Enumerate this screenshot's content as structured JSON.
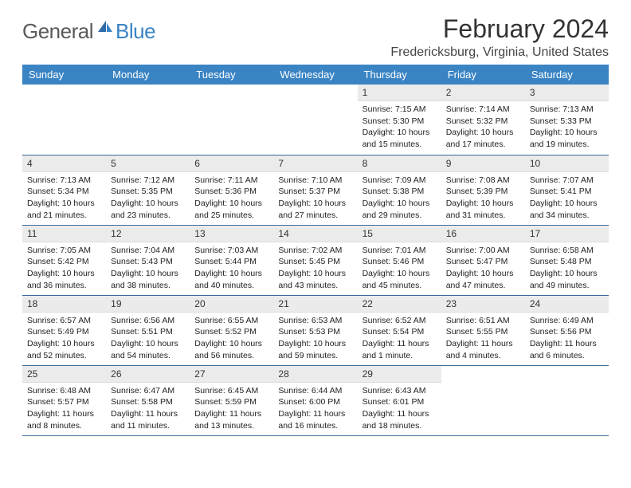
{
  "logo": {
    "general": "General",
    "blue": "Blue"
  },
  "title": "February 2024",
  "location": "Fredericksburg, Virginia, United States",
  "colors": {
    "header_bg": "#3a84c4",
    "header_text": "#ffffff",
    "daynum_bg": "#ebebeb",
    "row_border": "#3a6a9a",
    "logo_blue": "#3a84c4",
    "logo_gray": "#5a5a5a"
  },
  "weekdays": [
    "Sunday",
    "Monday",
    "Tuesday",
    "Wednesday",
    "Thursday",
    "Friday",
    "Saturday"
  ],
  "weeks": [
    [
      null,
      null,
      null,
      null,
      {
        "n": "1",
        "sr": "Sunrise: 7:15 AM",
        "ss": "Sunset: 5:30 PM",
        "dl1": "Daylight: 10 hours",
        "dl2": "and 15 minutes."
      },
      {
        "n": "2",
        "sr": "Sunrise: 7:14 AM",
        "ss": "Sunset: 5:32 PM",
        "dl1": "Daylight: 10 hours",
        "dl2": "and 17 minutes."
      },
      {
        "n": "3",
        "sr": "Sunrise: 7:13 AM",
        "ss": "Sunset: 5:33 PM",
        "dl1": "Daylight: 10 hours",
        "dl2": "and 19 minutes."
      }
    ],
    [
      {
        "n": "4",
        "sr": "Sunrise: 7:13 AM",
        "ss": "Sunset: 5:34 PM",
        "dl1": "Daylight: 10 hours",
        "dl2": "and 21 minutes."
      },
      {
        "n": "5",
        "sr": "Sunrise: 7:12 AM",
        "ss": "Sunset: 5:35 PM",
        "dl1": "Daylight: 10 hours",
        "dl2": "and 23 minutes."
      },
      {
        "n": "6",
        "sr": "Sunrise: 7:11 AM",
        "ss": "Sunset: 5:36 PM",
        "dl1": "Daylight: 10 hours",
        "dl2": "and 25 minutes."
      },
      {
        "n": "7",
        "sr": "Sunrise: 7:10 AM",
        "ss": "Sunset: 5:37 PM",
        "dl1": "Daylight: 10 hours",
        "dl2": "and 27 minutes."
      },
      {
        "n": "8",
        "sr": "Sunrise: 7:09 AM",
        "ss": "Sunset: 5:38 PM",
        "dl1": "Daylight: 10 hours",
        "dl2": "and 29 minutes."
      },
      {
        "n": "9",
        "sr": "Sunrise: 7:08 AM",
        "ss": "Sunset: 5:39 PM",
        "dl1": "Daylight: 10 hours",
        "dl2": "and 31 minutes."
      },
      {
        "n": "10",
        "sr": "Sunrise: 7:07 AM",
        "ss": "Sunset: 5:41 PM",
        "dl1": "Daylight: 10 hours",
        "dl2": "and 34 minutes."
      }
    ],
    [
      {
        "n": "11",
        "sr": "Sunrise: 7:05 AM",
        "ss": "Sunset: 5:42 PM",
        "dl1": "Daylight: 10 hours",
        "dl2": "and 36 minutes."
      },
      {
        "n": "12",
        "sr": "Sunrise: 7:04 AM",
        "ss": "Sunset: 5:43 PM",
        "dl1": "Daylight: 10 hours",
        "dl2": "and 38 minutes."
      },
      {
        "n": "13",
        "sr": "Sunrise: 7:03 AM",
        "ss": "Sunset: 5:44 PM",
        "dl1": "Daylight: 10 hours",
        "dl2": "and 40 minutes."
      },
      {
        "n": "14",
        "sr": "Sunrise: 7:02 AM",
        "ss": "Sunset: 5:45 PM",
        "dl1": "Daylight: 10 hours",
        "dl2": "and 43 minutes."
      },
      {
        "n": "15",
        "sr": "Sunrise: 7:01 AM",
        "ss": "Sunset: 5:46 PM",
        "dl1": "Daylight: 10 hours",
        "dl2": "and 45 minutes."
      },
      {
        "n": "16",
        "sr": "Sunrise: 7:00 AM",
        "ss": "Sunset: 5:47 PM",
        "dl1": "Daylight: 10 hours",
        "dl2": "and 47 minutes."
      },
      {
        "n": "17",
        "sr": "Sunrise: 6:58 AM",
        "ss": "Sunset: 5:48 PM",
        "dl1": "Daylight: 10 hours",
        "dl2": "and 49 minutes."
      }
    ],
    [
      {
        "n": "18",
        "sr": "Sunrise: 6:57 AM",
        "ss": "Sunset: 5:49 PM",
        "dl1": "Daylight: 10 hours",
        "dl2": "and 52 minutes."
      },
      {
        "n": "19",
        "sr": "Sunrise: 6:56 AM",
        "ss": "Sunset: 5:51 PM",
        "dl1": "Daylight: 10 hours",
        "dl2": "and 54 minutes."
      },
      {
        "n": "20",
        "sr": "Sunrise: 6:55 AM",
        "ss": "Sunset: 5:52 PM",
        "dl1": "Daylight: 10 hours",
        "dl2": "and 56 minutes."
      },
      {
        "n": "21",
        "sr": "Sunrise: 6:53 AM",
        "ss": "Sunset: 5:53 PM",
        "dl1": "Daylight: 10 hours",
        "dl2": "and 59 minutes."
      },
      {
        "n": "22",
        "sr": "Sunrise: 6:52 AM",
        "ss": "Sunset: 5:54 PM",
        "dl1": "Daylight: 11 hours",
        "dl2": "and 1 minute."
      },
      {
        "n": "23",
        "sr": "Sunrise: 6:51 AM",
        "ss": "Sunset: 5:55 PM",
        "dl1": "Daylight: 11 hours",
        "dl2": "and 4 minutes."
      },
      {
        "n": "24",
        "sr": "Sunrise: 6:49 AM",
        "ss": "Sunset: 5:56 PM",
        "dl1": "Daylight: 11 hours",
        "dl2": "and 6 minutes."
      }
    ],
    [
      {
        "n": "25",
        "sr": "Sunrise: 6:48 AM",
        "ss": "Sunset: 5:57 PM",
        "dl1": "Daylight: 11 hours",
        "dl2": "and 8 minutes."
      },
      {
        "n": "26",
        "sr": "Sunrise: 6:47 AM",
        "ss": "Sunset: 5:58 PM",
        "dl1": "Daylight: 11 hours",
        "dl2": "and 11 minutes."
      },
      {
        "n": "27",
        "sr": "Sunrise: 6:45 AM",
        "ss": "Sunset: 5:59 PM",
        "dl1": "Daylight: 11 hours",
        "dl2": "and 13 minutes."
      },
      {
        "n": "28",
        "sr": "Sunrise: 6:44 AM",
        "ss": "Sunset: 6:00 PM",
        "dl1": "Daylight: 11 hours",
        "dl2": "and 16 minutes."
      },
      {
        "n": "29",
        "sr": "Sunrise: 6:43 AM",
        "ss": "Sunset: 6:01 PM",
        "dl1": "Daylight: 11 hours",
        "dl2": "and 18 minutes."
      },
      null,
      null
    ]
  ]
}
